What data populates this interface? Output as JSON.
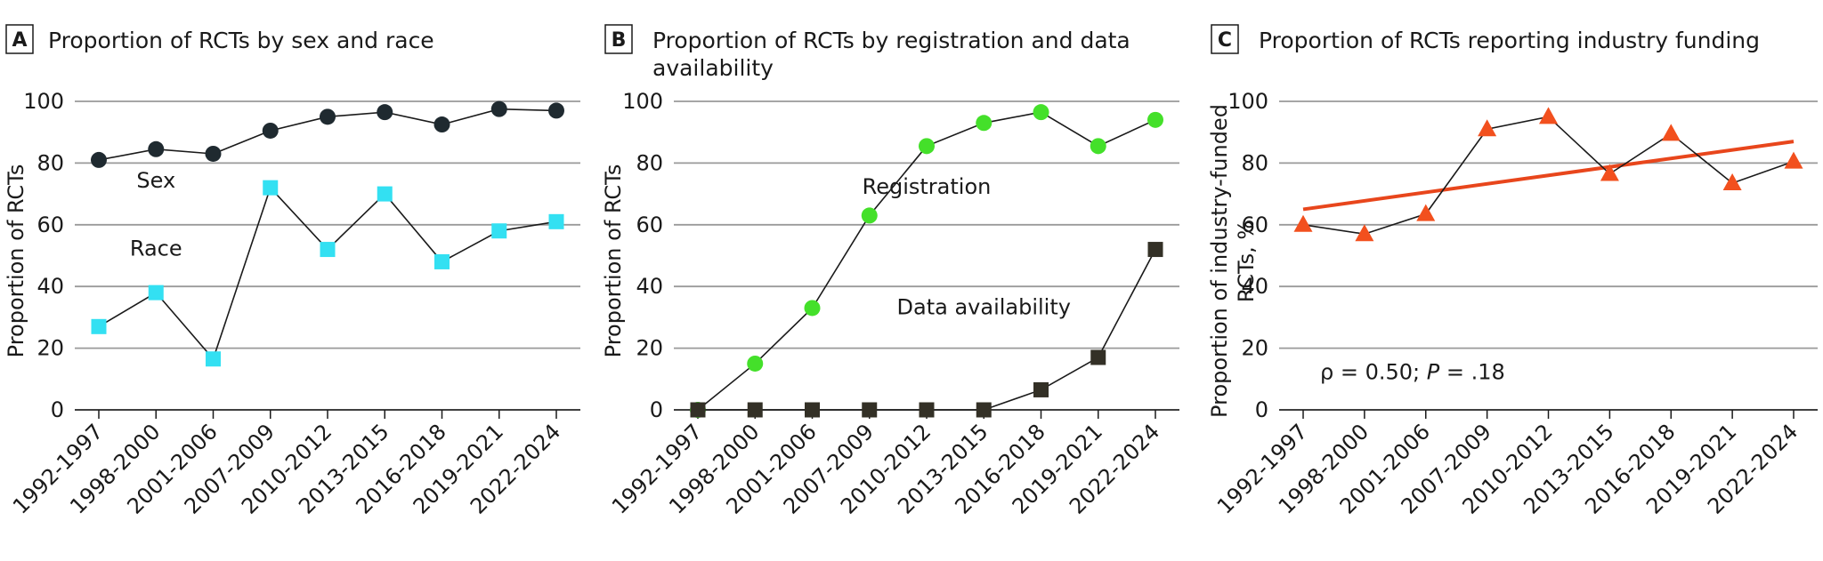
{
  "chart_data": [
    {
      "panel": "A",
      "type": "line",
      "title": "Proportion of RCTs by sex and race",
      "xlabel": "",
      "ylabel": "Proportion of RCTs",
      "ylim": [
        0,
        100
      ],
      "yticks": [
        0,
        20,
        40,
        60,
        80,
        100
      ],
      "grid": true,
      "categories": [
        "1992-1997",
        "1998-2000",
        "2001-2006",
        "2007-2009",
        "2010-2012",
        "2013-2015",
        "2016-2018",
        "2019-2021",
        "2022-2024"
      ],
      "series": [
        {
          "name": "Sex",
          "marker": "circle",
          "color": "#1f2a30",
          "values": [
            81,
            84.5,
            83,
            90.5,
            95,
            96.5,
            92.5,
            97.5,
            97
          ]
        },
        {
          "name": "Race",
          "marker": "square",
          "color": "#33e0f2",
          "values": [
            27,
            38,
            16.5,
            72,
            52,
            70,
            48,
            58,
            61
          ]
        }
      ],
      "annotations": [
        {
          "text": "Sex",
          "x_index": 1,
          "y": 72
        },
        {
          "text": "Race",
          "x_index": 1,
          "y": 50
        }
      ]
    },
    {
      "panel": "B",
      "type": "line",
      "title": "Proportion of RCTs by registration and data availability",
      "title_lines": [
        "Proportion of RCTs by registration and data",
        "availability"
      ],
      "xlabel": "",
      "ylabel": "Proportion of RCTs",
      "ylim": [
        0,
        100
      ],
      "yticks": [
        0,
        20,
        40,
        60,
        80,
        100
      ],
      "grid": true,
      "categories": [
        "1992-1997",
        "1998-2000",
        "2001-2006",
        "2007-2009",
        "2010-2012",
        "2013-2015",
        "2016-2018",
        "2019-2021",
        "2022-2024"
      ],
      "series": [
        {
          "name": "Registration",
          "marker": "circle",
          "color": "#44e02a",
          "values": [
            0,
            15,
            33,
            63,
            85.5,
            93,
            96.5,
            85.5,
            94
          ]
        },
        {
          "name": "Data availability",
          "marker": "square",
          "color": "#333026",
          "values": [
            0,
            0,
            0,
            0,
            0,
            0,
            6.5,
            17,
            52
          ]
        }
      ],
      "annotations": [
        {
          "text": "Registration",
          "x_index": 4,
          "y": 70
        },
        {
          "text": "Data availability",
          "x_index": 5,
          "y": 31
        }
      ]
    },
    {
      "panel": "C",
      "type": "line",
      "title": "Proportion of RCTs reporting industry funding",
      "xlabel": "",
      "ylabel": "Proportion of industry-funded RCTs, %",
      "ylabel_lines": [
        "Proportion of industry-funded",
        "RCTs, %"
      ],
      "ylim": [
        0,
        100
      ],
      "yticks": [
        0,
        20,
        40,
        60,
        80,
        100
      ],
      "grid": true,
      "categories": [
        "1992-1997",
        "1998-2000",
        "2001-2006",
        "2007-2009",
        "2010-2012",
        "2013-2015",
        "2016-2018",
        "2019-2021",
        "2022-2024"
      ],
      "series": [
        {
          "name": "Industry funding",
          "marker": "triangle",
          "color": "#f2501e",
          "values": [
            60,
            57,
            63.5,
            91,
            95,
            76.5,
            89.5,
            73.5,
            80.5
          ]
        }
      ],
      "trend_line": {
        "color": "#e8461c",
        "start": 65,
        "end": 87
      },
      "stat_annotation": {
        "prefix": "ρ = 0.50; ",
        "italic": "P",
        "suffix": " = .18"
      }
    }
  ]
}
